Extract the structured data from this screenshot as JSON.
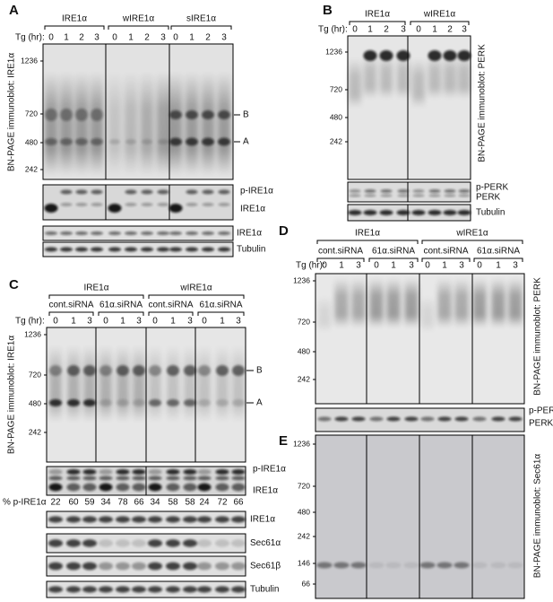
{
  "A": {
    "label": "A",
    "groups": [
      "IRE1α",
      "wIRE1α",
      "sIRE1α"
    ],
    "tg": "Tg (hr):",
    "lanes": [
      [
        "0",
        "1",
        "2",
        "3"
      ],
      [
        "0",
        "1",
        "2",
        "3"
      ],
      [
        "0",
        "1",
        "2",
        "3"
      ]
    ],
    "markers": [
      "1236",
      "720",
      "480",
      "242"
    ],
    "ylabel": "BN-PAGE immunoblot: IRE1α",
    "bands": [
      "B",
      "A"
    ],
    "strips": [
      "p-IRE1α",
      "IRE1α",
      "IRE1α",
      "Tubulin"
    ]
  },
  "B": {
    "label": "B",
    "groups": [
      "IRE1α",
      "wIRE1α"
    ],
    "tg": "Tg (hr):",
    "lanes": [
      [
        "0",
        "1",
        "2",
        "3"
      ],
      [
        "0",
        "1",
        "2",
        "3"
      ]
    ],
    "markers": [
      "1236",
      "720",
      "480",
      "242"
    ],
    "ylabel": "BN-PAGE immunoblot: PERK",
    "strips": [
      "p-PERK",
      "PERK",
      "Tubulin"
    ]
  },
  "C": {
    "label": "C",
    "groups": [
      {
        "name": "IRE1α",
        "sub": [
          "cont.siRNA",
          "61α.siRNA"
        ]
      },
      {
        "name": "wIRE1α",
        "sub": [
          "cont.siRNA",
          "61α.siRNA"
        ]
      }
    ],
    "tg": "Tg (hr):",
    "lanes": [
      [
        "0",
        "1",
        "3"
      ],
      [
        "0",
        "1",
        "3"
      ],
      [
        "0",
        "1",
        "3"
      ],
      [
        "0",
        "1",
        "3"
      ]
    ],
    "markers": [
      "1236",
      "720",
      "480",
      "242"
    ],
    "ylabel": "BN-PAGE immunoblot: IRE1α",
    "bands": [
      "B",
      "A"
    ],
    "strips": [
      "p-IRE1α",
      "IRE1α",
      "IRE1α",
      "Sec61α",
      "Sec61β",
      "Tubulin"
    ],
    "pct_label": "% p-IRE1α",
    "pct": [
      22,
      60,
      59,
      34,
      78,
      66,
      34,
      58,
      58,
      24,
      72,
      66
    ]
  },
  "D": {
    "label": "D",
    "groups": [
      {
        "name": "IRE1α",
        "sub": [
          "cont.siRNA",
          "61α.siRNA"
        ]
      },
      {
        "name": "wIRE1α",
        "sub": [
          "cont.siRNA",
          "61α.siRNA"
        ]
      }
    ],
    "tg": "Tg (hr):",
    "lanes": [
      [
        "0",
        "1",
        "3"
      ],
      [
        "0",
        "1",
        "3"
      ],
      [
        "0",
        "1",
        "3"
      ],
      [
        "0",
        "1",
        "3"
      ]
    ],
    "markers": [
      "1236",
      "720",
      "480",
      "242"
    ],
    "ylabel": "BN-PAGE immunoblot: PERK",
    "strips": [
      "p-PERK",
      "PERK"
    ]
  },
  "E": {
    "label": "E",
    "markers": [
      "1236",
      "720",
      "480",
      "242",
      "146",
      "66"
    ],
    "ylabel": "BN-PAGE immunoblot: Sec61α"
  }
}
